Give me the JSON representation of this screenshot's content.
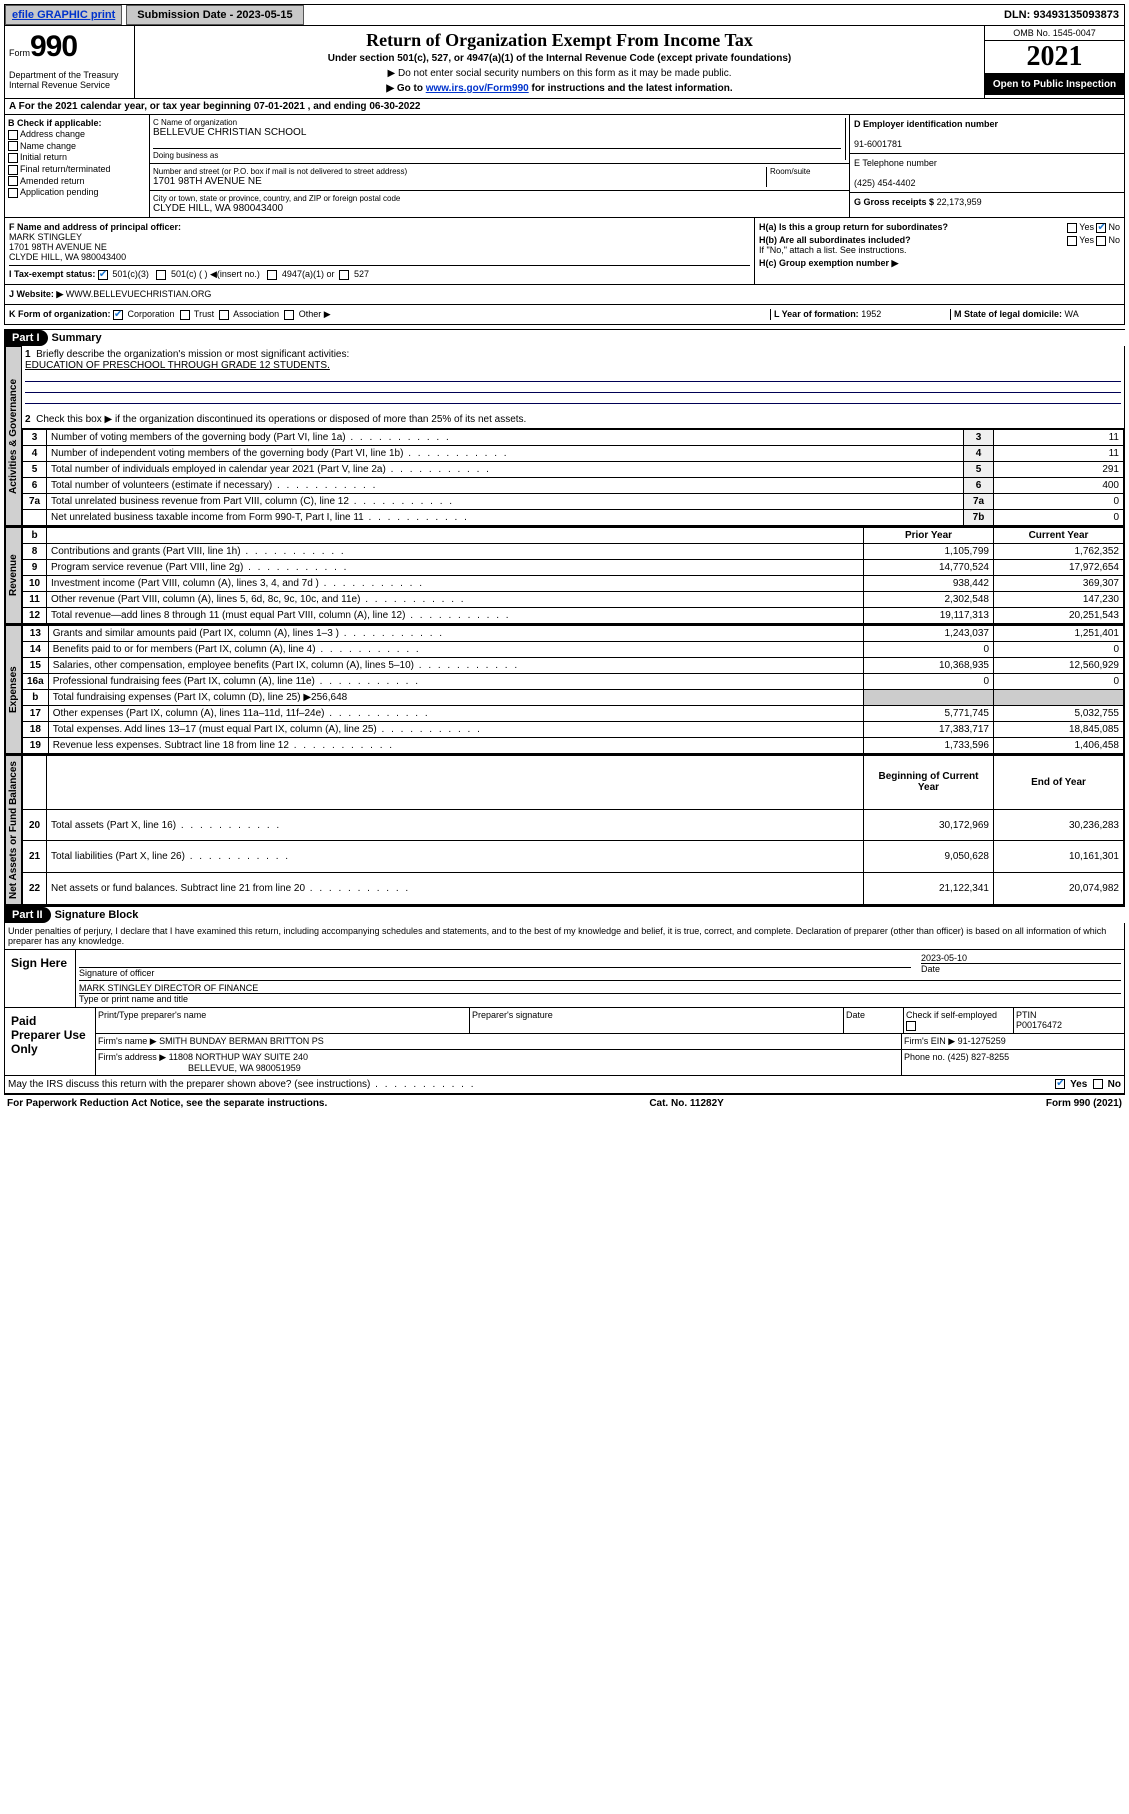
{
  "topbar": {
    "efile_btn": "efile GRAPHIC print",
    "submission_label": "Submission Date - 2023-05-15",
    "dln": "DLN: 93493135093873"
  },
  "header": {
    "form_word": "Form",
    "form_num": "990",
    "dept": "Department of the Treasury Internal Revenue Service",
    "title": "Return of Organization Exempt From Income Tax",
    "subtitle": "Under section 501(c), 527, or 4947(a)(1) of the Internal Revenue Code (except private foundations)",
    "directive1": "▶ Do not enter social security numbers on this form as it may be made public.",
    "directive2_pre": "▶ Go to ",
    "directive2_link": "www.irs.gov/Form990",
    "directive2_post": " for instructions and the latest information.",
    "omb": "OMB No. 1545-0047",
    "year": "2021",
    "open": "Open to Public Inspection"
  },
  "rowA": "A For the 2021 calendar year, or tax year beginning 07-01-2021   , and ending 06-30-2022",
  "colB": {
    "header": "B Check if applicable:",
    "addr_change": "Address change",
    "name_change": "Name change",
    "initial": "Initial return",
    "final": "Final return/terminated",
    "amended": "Amended return",
    "app_pending": "Application pending"
  },
  "name": {
    "label_c": "C Name of organization",
    "org": "BELLEVUE CHRISTIAN SCHOOL",
    "dba_label": "Doing business as",
    "street_label": "Number and street (or P.O. box if mail is not delivered to street address)",
    "room_label": "Room/suite",
    "street": "1701 98TH AVENUE NE",
    "city_label": "City or town, state or province, country, and ZIP or foreign postal code",
    "city": "CLYDE HILL, WA  980043400"
  },
  "colD": {
    "ein_label": "D Employer identification number",
    "ein": "91-6001781",
    "phone_label": "E Telephone number",
    "phone": "(425) 454-4402",
    "gross_label": "G Gross receipts $",
    "gross": "22,173,959"
  },
  "rowF": {
    "label": "F Name and address of principal officer:",
    "name": "MARK STINGLEY",
    "street": "1701 98TH AVENUE NE",
    "city": "CLYDE HILL, WA  980043400"
  },
  "rowH": {
    "ha": "H(a)  Is this a group return for subordinates?",
    "hb": "H(b)  Are all subordinates included?",
    "hb_note": "If \"No,\" attach a list. See instructions.",
    "hc": "H(c)  Group exemption number ▶",
    "yes": "Yes",
    "no": "No"
  },
  "rowI": {
    "label": "I   Tax-exempt status:",
    "o1": "501(c)(3)",
    "o2": "501(c) (  ) ◀(insert no.)",
    "o3": "4947(a)(1) or",
    "o4": "527"
  },
  "rowJ": {
    "label": "J   Website: ▶",
    "val": "WWW.BELLEVUECHRISTIAN.ORG"
  },
  "rowK": {
    "label": "K Form of organization:",
    "corp": "Corporation",
    "trust": "Trust",
    "assoc": "Association",
    "other": "Other ▶",
    "l_label": "L Year of formation: ",
    "l_val": "1952",
    "m_label": "M State of legal domicile: ",
    "m_val": "WA"
  },
  "part1": {
    "num": "Part I",
    "title": "Summary",
    "q1": "Briefly describe the organization's mission or most significant activities:",
    "q1_ans": "EDUCATION OF PRESCHOOL THROUGH GRADE 12 STUDENTS.",
    "q2": "Check this box ▶      if the organization discontinued its operations or disposed of more than 25% of its net assets."
  },
  "side_labels": {
    "gov": "Activities & Governance",
    "rev": "Revenue",
    "exp": "Expenses",
    "net": "Net Assets or Fund Balances"
  },
  "gov_rows": [
    {
      "ln": "3",
      "desc": "Number of voting members of the governing body (Part VI, line 1a)",
      "box": "3",
      "val": "11"
    },
    {
      "ln": "4",
      "desc": "Number of independent voting members of the governing body (Part VI, line 1b)",
      "box": "4",
      "val": "11"
    },
    {
      "ln": "5",
      "desc": "Total number of individuals employed in calendar year 2021 (Part V, line 2a)",
      "box": "5",
      "val": "291"
    },
    {
      "ln": "6",
      "desc": "Total number of volunteers (estimate if necessary)",
      "box": "6",
      "val": "400"
    },
    {
      "ln": "7a",
      "desc": "Total unrelated business revenue from Part VIII, column (C), line 12",
      "box": "7a",
      "val": "0"
    },
    {
      "ln": "",
      "desc": "Net unrelated business taxable income from Form 990-T, Part I, line 11",
      "box": "7b",
      "val": "0"
    }
  ],
  "col_headers": {
    "ln": "b",
    "prior": "Prior Year",
    "current": "Current Year"
  },
  "rev_rows": [
    {
      "ln": "8",
      "desc": "Contributions and grants (Part VIII, line 1h)",
      "prior": "1,105,799",
      "curr": "1,762,352"
    },
    {
      "ln": "9",
      "desc": "Program service revenue (Part VIII, line 2g)",
      "prior": "14,770,524",
      "curr": "17,972,654"
    },
    {
      "ln": "10",
      "desc": "Investment income (Part VIII, column (A), lines 3, 4, and 7d )",
      "prior": "938,442",
      "curr": "369,307"
    },
    {
      "ln": "11",
      "desc": "Other revenue (Part VIII, column (A), lines 5, 6d, 8c, 9c, 10c, and 11e)",
      "prior": "2,302,548",
      "curr": "147,230"
    },
    {
      "ln": "12",
      "desc": "Total revenue—add lines 8 through 11 (must equal Part VIII, column (A), line 12)",
      "prior": "19,117,313",
      "curr": "20,251,543"
    }
  ],
  "exp_rows": [
    {
      "ln": "13",
      "desc": "Grants and similar amounts paid (Part IX, column (A), lines 1–3 )",
      "prior": "1,243,037",
      "curr": "1,251,401"
    },
    {
      "ln": "14",
      "desc": "Benefits paid to or for members (Part IX, column (A), line 4)",
      "prior": "0",
      "curr": "0"
    },
    {
      "ln": "15",
      "desc": "Salaries, other compensation, employee benefits (Part IX, column (A), lines 5–10)",
      "prior": "10,368,935",
      "curr": "12,560,929"
    },
    {
      "ln": "16a",
      "desc": "Professional fundraising fees (Part IX, column (A), line 11e)",
      "prior": "0",
      "curr": "0"
    },
    {
      "ln": "b",
      "desc": "Total fundraising expenses (Part IX, column (D), line 25) ▶256,648",
      "prior": "",
      "curr": "",
      "shaded": true
    },
    {
      "ln": "17",
      "desc": "Other expenses (Part IX, column (A), lines 11a–11d, 11f–24e)",
      "prior": "5,771,745",
      "curr": "5,032,755"
    },
    {
      "ln": "18",
      "desc": "Total expenses. Add lines 13–17 (must equal Part IX, column (A), line 25)",
      "prior": "17,383,717",
      "curr": "18,845,085"
    },
    {
      "ln": "19",
      "desc": "Revenue less expenses. Subtract line 18 from line 12",
      "prior": "1,733,596",
      "curr": "1,406,458"
    }
  ],
  "net_headers": {
    "prior": "Beginning of Current Year",
    "current": "End of Year"
  },
  "net_rows": [
    {
      "ln": "20",
      "desc": "Total assets (Part X, line 16)",
      "prior": "30,172,969",
      "curr": "30,236,283"
    },
    {
      "ln": "21",
      "desc": "Total liabilities (Part X, line 26)",
      "prior": "9,050,628",
      "curr": "10,161,301"
    },
    {
      "ln": "22",
      "desc": "Net assets or fund balances. Subtract line 21 from line 20",
      "prior": "21,122,341",
      "curr": "20,074,982"
    }
  ],
  "part2": {
    "num": "Part II",
    "title": "Signature Block",
    "declaration": "Under penalties of perjury, I declare that I have examined this return, including accompanying schedules and statements, and to the best of my knowledge and belief, it is true, correct, and complete. Declaration of preparer (other than officer) is based on all information of which preparer has any knowledge."
  },
  "sign": {
    "label": "Sign Here",
    "sig_officer": "Signature of officer",
    "date": "Date",
    "date_val": "2023-05-10",
    "name_title": "MARK STINGLEY  DIRECTOR OF FINANCE",
    "type_label": "Type or print name and title"
  },
  "prep": {
    "label": "Paid Preparer Use Only",
    "pname_label": "Print/Type preparer's name",
    "psig_label": "Preparer's signature",
    "pdate_label": "Date",
    "check_label": "Check        if self-employed",
    "ptin_label": "PTIN",
    "ptin": "P00176472",
    "firm_name_label": "Firm's name    ▶",
    "firm_name": "SMITH BUNDAY BERMAN BRITTON PS",
    "firm_ein_label": "Firm's EIN ▶",
    "firm_ein": "91-1275259",
    "firm_addr_label": "Firm's address ▶",
    "firm_addr1": "11808 NORTHUP WAY SUITE 240",
    "firm_addr2": "BELLEVUE, WA  980051959",
    "phone_label": "Phone no.",
    "phone": "(425) 827-8255"
  },
  "discuss": {
    "q": "May the IRS discuss this return with the preparer shown above? (see instructions)",
    "yes": "Yes",
    "no": "No"
  },
  "footer": {
    "paperwork": "For Paperwork Reduction Act Notice, see the separate instructions.",
    "cat": "Cat. No. 11282Y",
    "form": "Form 990 (2021)"
  }
}
